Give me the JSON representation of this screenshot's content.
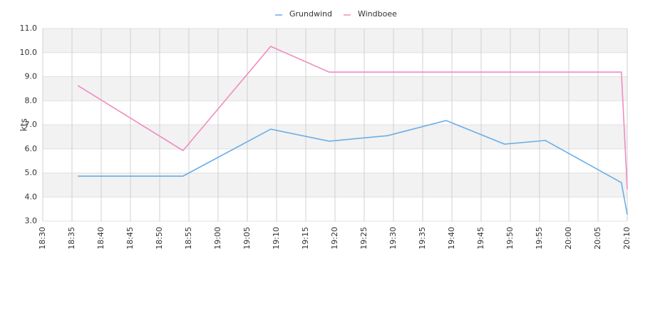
{
  "chart_data": {
    "type": "line",
    "y_label": "kts",
    "x": [
      "18:36",
      "18:54",
      "19:09",
      "19:19",
      "19:29",
      "19:39",
      "19:49",
      "19:56",
      "20:09",
      "20:10"
    ],
    "series": [
      {
        "name": "Grundwind",
        "color": "#6aaee8",
        "values": [
          4.87,
          4.87,
          6.82,
          6.32,
          6.55,
          7.18,
          6.2,
          6.35,
          4.6,
          3.27
        ]
      },
      {
        "name": "Windboee",
        "color": "#f08cbf",
        "values": [
          8.63,
          5.93,
          10.26,
          9.19,
          9.19,
          9.19,
          9.19,
          9.19,
          9.19,
          4.33
        ]
      }
    ],
    "xlim": [
      "18:30",
      "20:10"
    ],
    "xticks": [
      "18:30",
      "18:35",
      "18:40",
      "18:45",
      "18:50",
      "18:55",
      "19:00",
      "19:05",
      "19:10",
      "19:15",
      "19:20",
      "19:25",
      "19:30",
      "19:35",
      "19:40",
      "19:45",
      "19:50",
      "19:55",
      "20:00",
      "20:05",
      "20:10"
    ],
    "ylim": [
      3,
      11
    ],
    "yticks": [
      {
        "value": 3,
        "label": "3.0"
      },
      {
        "value": 4,
        "label": "4.0"
      },
      {
        "value": 5,
        "label": "5.0"
      },
      {
        "value": 6,
        "label": "6.0"
      },
      {
        "value": 7,
        "label": "7.0"
      },
      {
        "value": 8,
        "label": "8.0"
      },
      {
        "value": 9,
        "label": "9.0"
      },
      {
        "value": 10,
        "label": "10.0"
      },
      {
        "value": 11,
        "label": "11.0"
      }
    ],
    "grid": true,
    "legend": "top"
  }
}
